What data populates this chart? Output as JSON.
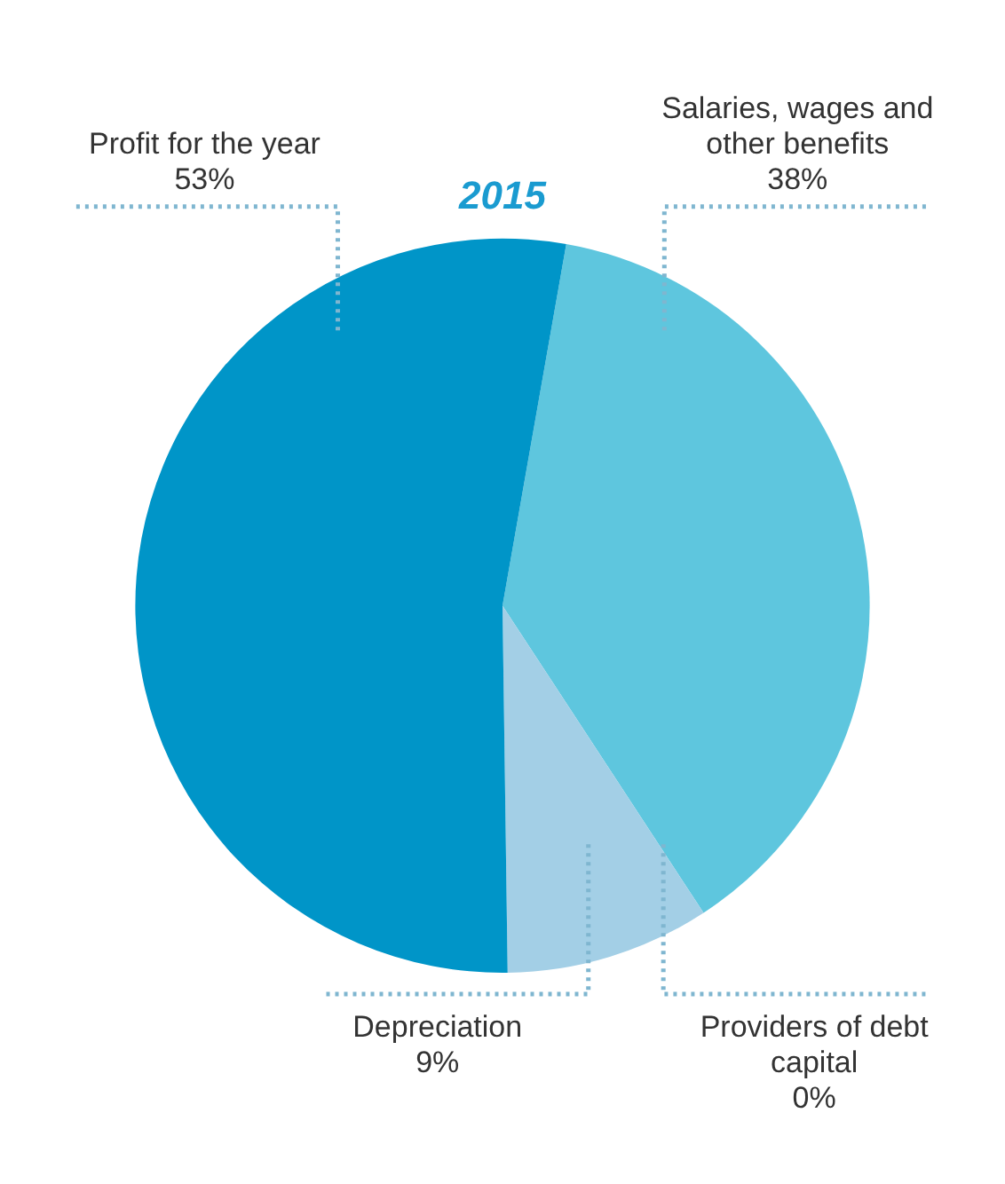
{
  "chart_data": {
    "type": "pie",
    "title": "2015",
    "categories": [
      "Salaries, wages and other benefits",
      "Providers of debt capital",
      "Depreciation",
      "Profit for the year"
    ],
    "values": [
      38,
      0,
      9,
      53
    ],
    "value_labels": [
      "38%",
      "0%",
      "9%",
      "53%"
    ],
    "colors": [
      "#5ec6de",
      "#1f7fae",
      "#a3cfe6",
      "#0095c8"
    ],
    "legend": false
  }
}
